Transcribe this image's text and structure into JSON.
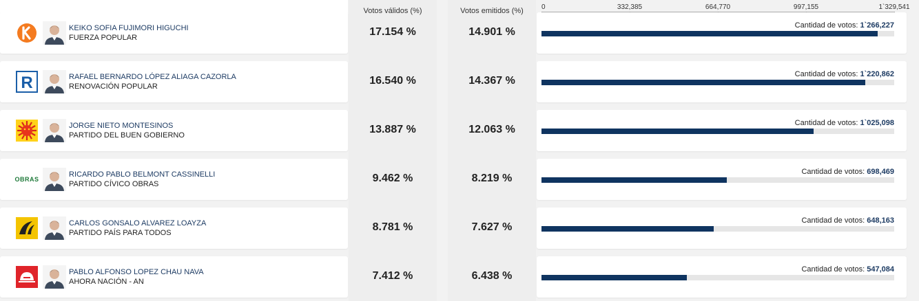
{
  "columns": {
    "validos": "Votos válidos (%)",
    "emitidos": "Votos emitidos (%)"
  },
  "axis": {
    "max": 1329541,
    "ticks": [
      "0",
      "332,385",
      "664,770",
      "997,155",
      "1`329,541"
    ]
  },
  "votes_label": "Cantidad de votos:",
  "candidates": [
    {
      "name": "KEIKO SOFIA FUJIMORI HIGUCHI",
      "party": "FUERZA POPULAR",
      "validos": "17.154 %",
      "emitidos": "14.901 %",
      "votes_text": "1`266,227",
      "votes": 1266227,
      "logo": "fuerza-popular-logo"
    },
    {
      "name": "RAFAEL BERNARDO LÓPEZ ALIAGA CAZORLA",
      "party": "RENOVACIÓN POPULAR",
      "validos": "16.540 %",
      "emitidos": "14.367 %",
      "votes_text": "1`220,862",
      "votes": 1220862,
      "logo": "renovacion-popular-logo"
    },
    {
      "name": "JORGE NIETO MONTESINOS",
      "party": "PARTIDO DEL BUEN GOBIERNO",
      "validos": "13.887 %",
      "emitidos": "12.063 %",
      "votes_text": "1`025,098",
      "votes": 1025098,
      "logo": "buen-gobierno-sun-logo"
    },
    {
      "name": "RICARDO PABLO BELMONT CASSINELLI",
      "party": "PARTIDO CÍVICO OBRAS",
      "validos": "9.462 %",
      "emitidos": "8.219 %",
      "votes_text": "698,469",
      "votes": 698469,
      "logo": "obras-logo",
      "logo_text": "OBRAS"
    },
    {
      "name": "CARLOS GONSALO ALVAREZ LOAYZA",
      "party": "PARTIDO PAÍS PARA TODOS",
      "validos": "8.781 %",
      "emitidos": "7.627 %",
      "votes_text": "648,163",
      "votes": 648163,
      "logo": "pais-para-todos-logo"
    },
    {
      "name": "PABLO ALFONSO LOPEZ CHAU NAVA",
      "party": "AHORA NACIÓN - AN",
      "validos": "7.412 %",
      "emitidos": "6.438 %",
      "votes_text": "547,084",
      "votes": 547084,
      "logo": "ahora-nacion-logo"
    }
  ],
  "colors": {
    "bar": "#0f3460",
    "track": "#e6e6e6",
    "name": "#1d3b63"
  }
}
